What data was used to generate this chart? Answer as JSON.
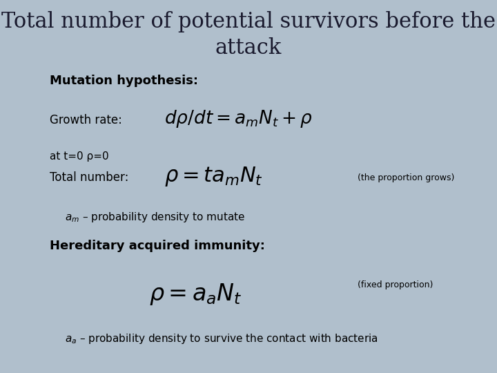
{
  "title_line1": "Total number of potential survivors before the",
  "title_line2": "attack",
  "title_fontsize": 22,
  "title_color": "#1a1a2e",
  "bg_color": "#b0bfcc",
  "text_color": "#000000",
  "mutation_hypothesis": "Mutation hypothesis:",
  "growth_rate_label": "Growth rate:",
  "at_t0": "at t=0 ρ=0",
  "total_number_label": "Total number:",
  "proportion_grows": "(the proportion grows)",
  "am_desc_plain": " – probability density to mutate",
  "hereditary_immunity": "Hereditary acquired immunity:",
  "fixed_proportion": "(fixed proportion)",
  "aa_desc_plain": " – probability density to survive the contact with bacteria"
}
